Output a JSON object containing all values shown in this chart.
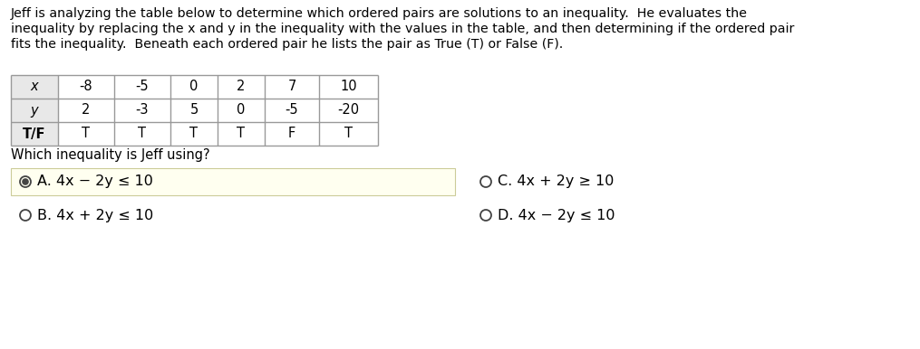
{
  "paragraph_lines": [
    "Jeff is analyzing the table below to determine which ordered pairs are solutions to an inequality.  He evaluates the",
    "inequality by replacing the x and y in the inequality with the values in the table, and then determining if the ordered pair",
    "fits the inequality.  Beneath each ordered pair he lists the pair as True (T) or False (F)."
  ],
  "table_rows": {
    "x": [
      "-8",
      "-5",
      "0",
      "2",
      "7",
      "10"
    ],
    "y": [
      "2",
      "-3",
      "5",
      "0",
      "-5",
      "-20"
    ],
    "T/F": [
      "T",
      "T",
      "T",
      "T",
      "F",
      "T"
    ]
  },
  "question": "Which inequality is Jeff using?",
  "options": [
    {
      "label": "A.",
      "text": "4x − 2y ≤ 10",
      "selected": true,
      "col": 0,
      "row": 0
    },
    {
      "label": "B.",
      "text": "4x + 2y ≤ 10",
      "selected": false,
      "col": 0,
      "row": 1
    },
    {
      "label": "C.",
      "text": "4x + 2y ≥ 10",
      "selected": false,
      "col": 1,
      "row": 0
    },
    {
      "label": "D.",
      "text": "4x − 2y ≤ 10",
      "selected": false,
      "col": 1,
      "row": 1
    }
  ],
  "bg_color": "#ffffff",
  "selected_bg": "#fffff0",
  "selected_border": "#cccc99",
  "table_border": "#999999",
  "table_header_bg": "#e8e8e8",
  "text_color": "#000000",
  "radio_color": "#444444",
  "font_size_para": 10.2,
  "font_size_table": 10.5,
  "font_size_question": 10.5,
  "font_size_options": 11.5
}
